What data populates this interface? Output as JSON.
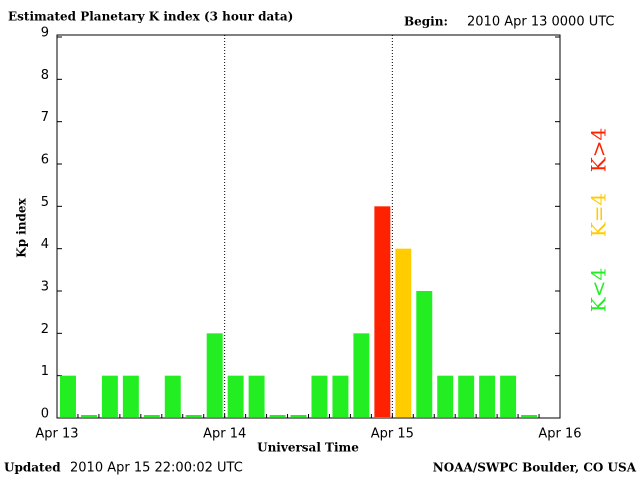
{
  "chart_data": {
    "type": "bar",
    "title": "Estimated Planetary K index (3 hour data)",
    "begin_label": "Begin:",
    "begin": "2010 Apr 13 0000 UTC",
    "updated_label": "Updated",
    "updated": "2010 Apr 15 22:00:02 UTC",
    "credit": "NOAA/SWPC Boulder, CO USA",
    "xlabel": "Universal Time",
    "ylabel": "Kp index",
    "values": [
      1,
      0,
      1,
      1,
      0,
      1,
      0,
      2,
      1,
      1,
      0,
      0,
      1,
      1,
      2,
      5,
      4,
      3,
      1,
      1,
      1,
      1,
      0,
      null
    ],
    "colors": [
      "#22ee22",
      "#22ee22",
      "#22ee22",
      "#22ee22",
      "#22ee22",
      "#22ee22",
      "#22ee22",
      "#22ee22",
      "#22ee22",
      "#22ee22",
      "#22ee22",
      "#22ee22",
      "#22ee22",
      "#22ee22",
      "#22ee22",
      "#ff2200",
      "#ffcc00",
      "#22ee22",
      "#22ee22",
      "#22ee22",
      "#22ee22",
      "#22ee22",
      "#22ee22",
      null
    ],
    "xticks": [
      "Apr 13",
      "Apr 14",
      "Apr 15",
      "Apr 16"
    ],
    "ylim": [
      0,
      9
    ],
    "yticks": [
      0,
      1,
      2,
      3,
      4,
      5,
      6,
      7,
      8,
      9
    ],
    "legend": [
      {
        "label": "K<4",
        "color": "#22ee22"
      },
      {
        "label": "K=4",
        "color": "#ffcc00"
      },
      {
        "label": "K>4",
        "color": "#ff2200"
      }
    ]
  }
}
